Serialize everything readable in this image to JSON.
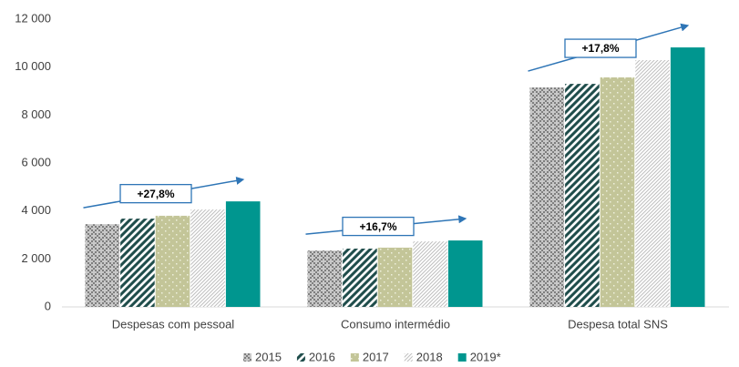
{
  "chart_data": {
    "type": "bar",
    "categories": [
      "Despesas com pessoal",
      "Consumo intermédio",
      "Despesa total SNS"
    ],
    "series": [
      {
        "name": "2015",
        "color": "#7f7f7f",
        "pattern": "dots",
        "values": [
          3450,
          2350,
          9150
        ]
      },
      {
        "name": "2016",
        "color": "#1f4d4b",
        "pattern": "wide-diagonal",
        "values": [
          3680,
          2430,
          9300
        ]
      },
      {
        "name": "2017",
        "color": "#c3c598",
        "pattern": "light-dots",
        "values": [
          3800,
          2470,
          9570
        ]
      },
      {
        "name": "2018",
        "color": "#bfbfbf",
        "pattern": "thin-diagonal",
        "values": [
          4060,
          2730,
          10290
        ]
      },
      {
        "name": "2019*",
        "color": "#00968f",
        "pattern": "solid",
        "values": [
          4400,
          2770,
          10820
        ]
      }
    ],
    "annotations": [
      "+27,8%",
      "+16,7%",
      "+17,8%"
    ],
    "annotation_color": "#2e75b6",
    "ylim": [
      0,
      12000
    ],
    "yticks": [
      0,
      {
        "value": 2000,
        "label": "2 000"
      },
      {
        "value": 4000,
        "label": "4 000"
      },
      {
        "value": 6000,
        "label": "6 000"
      },
      {
        "value": 8000,
        "label": "8 000"
      },
      {
        "value": 10000,
        "label": "10 000"
      },
      {
        "value": 12000,
        "label": "12 000"
      }
    ],
    "legend": "bottom"
  }
}
